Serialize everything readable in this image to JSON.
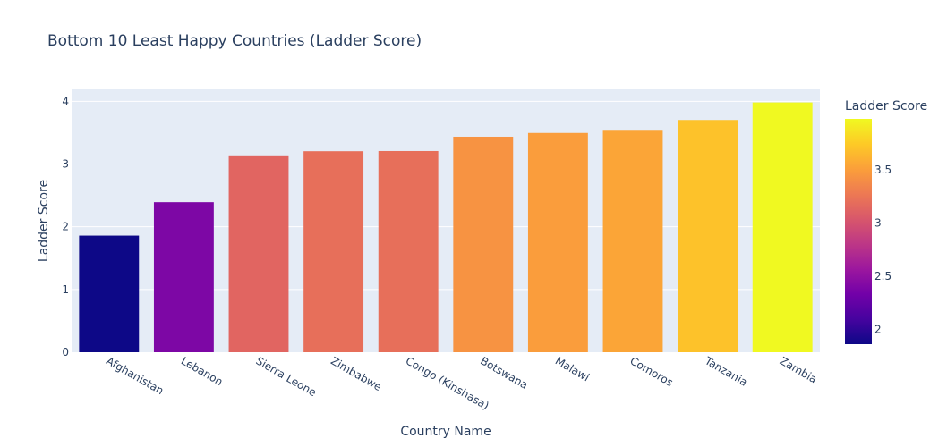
{
  "chart_data": {
    "type": "bar",
    "title": "Bottom 10 Least Happy Countries (Ladder Score)",
    "xlabel": "Country Name",
    "ylabel": "Ladder Score",
    "categories": [
      "Afghanistan",
      "Lebanon",
      "Sierra Leone",
      "Zimbabwe",
      "Congo (Kinshasa)",
      "Botswana",
      "Malawi",
      "Comoros",
      "Tanzania",
      "Zambia"
    ],
    "values": [
      1.859,
      2.392,
      3.138,
      3.204,
      3.207,
      3.435,
      3.495,
      3.545,
      3.702,
      3.982
    ],
    "ylim": [
      0,
      4.19
    ],
    "yticks": [
      0,
      1,
      2,
      3,
      4
    ],
    "grid": true,
    "colorscale": "Plasma",
    "colorbar": {
      "title": "Ladder Score",
      "range": [
        1.859,
        3.982
      ],
      "ticks": [
        2,
        2.5,
        3,
        3.5
      ],
      "tick_labels": [
        "2",
        "2.5",
        "3",
        "3.5"
      ]
    },
    "colors": {
      "plot_bg": "#e5ecf6",
      "grid": "#ffffff",
      "text": "#2a3f5f"
    }
  }
}
